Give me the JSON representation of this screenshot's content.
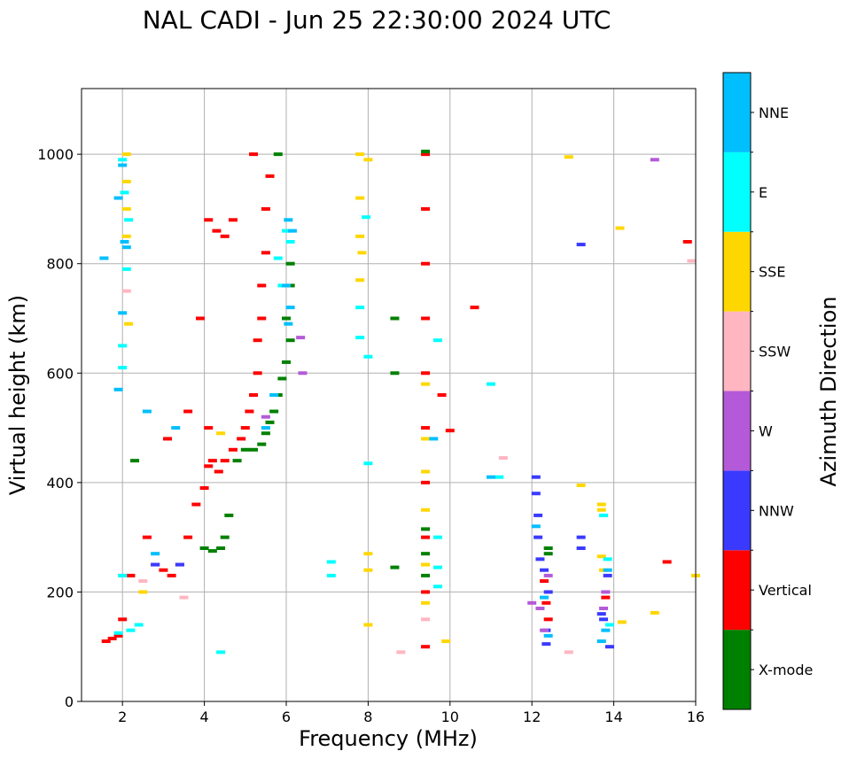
{
  "chart_data": {
    "type": "scatter",
    "title": "NAL CADI - Jun 25 22:30:00 2024 UTC",
    "xlabel": "Frequency (MHz)",
    "ylabel": "Virtual height (km)",
    "xlim": [
      1,
      16
    ],
    "ylim": [
      0,
      1120
    ],
    "xticks": [
      2,
      4,
      6,
      8,
      10,
      12,
      14,
      16
    ],
    "yticks": [
      0,
      200,
      400,
      600,
      800,
      1000
    ],
    "grid": true,
    "colorbar": {
      "label": "Azimuth Direction",
      "categories": [
        {
          "name": "X-mode",
          "color": "#008000"
        },
        {
          "name": "Vertical",
          "color": "#ff0000"
        },
        {
          "name": "NNW",
          "color": "#3a3aff"
        },
        {
          "name": "W",
          "color": "#b45ad8"
        },
        {
          "name": "SSW",
          "color": "#ffb6c1"
        },
        {
          "name": "SSE",
          "color": "#ffd700"
        },
        {
          "name": "E",
          "color": "#00ffff"
        },
        {
          "name": "NNE",
          "color": "#00bfff"
        }
      ]
    },
    "series": [
      {
        "name": "Vertical",
        "points": [
          [
            1.6,
            110
          ],
          [
            1.75,
            115
          ],
          [
            1.9,
            120
          ],
          [
            2.0,
            150
          ],
          [
            2.2,
            230
          ],
          [
            2.6,
            300
          ],
          [
            2.8,
            250
          ],
          [
            3.0,
            240
          ],
          [
            3.2,
            230
          ],
          [
            3.4,
            250
          ],
          [
            3.6,
            300
          ],
          [
            3.8,
            360
          ],
          [
            4.0,
            390
          ],
          [
            4.1,
            430
          ],
          [
            4.2,
            440
          ],
          [
            4.35,
            420
          ],
          [
            4.5,
            440
          ],
          [
            4.7,
            460
          ],
          [
            4.9,
            480
          ],
          [
            5.0,
            500
          ],
          [
            5.1,
            530
          ],
          [
            5.2,
            560
          ],
          [
            5.3,
            600
          ],
          [
            5.3,
            660
          ],
          [
            5.4,
            700
          ],
          [
            5.4,
            760
          ],
          [
            5.5,
            820
          ],
          [
            5.5,
            900
          ],
          [
            5.6,
            960
          ],
          [
            5.2,
            1000
          ],
          [
            4.1,
            880
          ],
          [
            4.3,
            860
          ],
          [
            4.5,
            850
          ],
          [
            4.7,
            880
          ],
          [
            3.9,
            700
          ],
          [
            3.1,
            480
          ],
          [
            3.6,
            530
          ],
          [
            4.1,
            500
          ],
          [
            9.4,
            1000
          ],
          [
            9.4,
            900
          ],
          [
            9.4,
            800
          ],
          [
            9.4,
            700
          ],
          [
            9.4,
            600
          ],
          [
            9.4,
            500
          ],
          [
            9.4,
            400
          ],
          [
            9.4,
            300
          ],
          [
            9.4,
            200
          ],
          [
            9.4,
            100
          ],
          [
            9.8,
            560
          ],
          [
            10.0,
            495
          ],
          [
            10.6,
            720
          ],
          [
            12.3,
            220
          ],
          [
            12.35,
            180
          ],
          [
            12.4,
            150
          ],
          [
            13.8,
            190
          ],
          [
            15.3,
            255
          ],
          [
            15.8,
            840
          ]
        ]
      },
      {
        "name": "X-mode",
        "points": [
          [
            2.3,
            440
          ],
          [
            4.0,
            280
          ],
          [
            4.2,
            275
          ],
          [
            4.4,
            280
          ],
          [
            4.5,
            300
          ],
          [
            4.6,
            340
          ],
          [
            4.8,
            440
          ],
          [
            5.0,
            460
          ],
          [
            5.2,
            460
          ],
          [
            5.4,
            470
          ],
          [
            5.5,
            490
          ],
          [
            5.6,
            510
          ],
          [
            5.7,
            530
          ],
          [
            5.8,
            560
          ],
          [
            5.9,
            590
          ],
          [
            6.0,
            620
          ],
          [
            6.1,
            660
          ],
          [
            6.0,
            700
          ],
          [
            6.1,
            760
          ],
          [
            6.1,
            800
          ],
          [
            5.8,
            1000
          ],
          [
            8.65,
            700
          ],
          [
            8.65,
            600
          ],
          [
            8.65,
            245
          ],
          [
            9.4,
            315
          ],
          [
            9.4,
            270
          ],
          [
            9.4,
            230
          ],
          [
            9.4,
            1005
          ],
          [
            12.4,
            270
          ],
          [
            12.4,
            280
          ]
        ]
      },
      {
        "name": "NNW",
        "points": [
          [
            12.1,
            410
          ],
          [
            12.1,
            380
          ],
          [
            12.15,
            340
          ],
          [
            12.15,
            300
          ],
          [
            12.2,
            260
          ],
          [
            12.3,
            240
          ],
          [
            12.4,
            200
          ],
          [
            12.35,
            130
          ],
          [
            12.35,
            105
          ],
          [
            13.2,
            300
          ],
          [
            13.2,
            280
          ],
          [
            13.2,
            835
          ],
          [
            13.7,
            160
          ],
          [
            13.75,
            150
          ],
          [
            13.85,
            230
          ],
          [
            13.9,
            100
          ],
          [
            2.8,
            250
          ],
          [
            3.4,
            250
          ]
        ]
      },
      {
        "name": "W",
        "points": [
          [
            6.4,
            600
          ],
          [
            6.35,
            665
          ],
          [
            5.5,
            520
          ],
          [
            12.0,
            180
          ],
          [
            12.2,
            170
          ],
          [
            12.4,
            230
          ],
          [
            12.3,
            130
          ],
          [
            15.0,
            990
          ],
          [
            13.75,
            170
          ],
          [
            13.8,
            200
          ]
        ]
      },
      {
        "name": "SSW",
        "points": [
          [
            2.1,
            750
          ],
          [
            2.5,
            220
          ],
          [
            3.5,
            190
          ],
          [
            8.8,
            90
          ],
          [
            9.4,
            150
          ],
          [
            11.3,
            445
          ],
          [
            12.9,
            90
          ],
          [
            15.9,
            805
          ],
          [
            2.0,
            230
          ]
        ]
      },
      {
        "name": "SSE",
        "points": [
          [
            2.1,
            1000
          ],
          [
            2.1,
            950
          ],
          [
            2.1,
            900
          ],
          [
            2.1,
            850
          ],
          [
            2.15,
            690
          ],
          [
            2.5,
            200
          ],
          [
            7.8,
            1000
          ],
          [
            7.8,
            920
          ],
          [
            7.8,
            850
          ],
          [
            7.85,
            820
          ],
          [
            7.8,
            770
          ],
          [
            8.0,
            990
          ],
          [
            8.0,
            270
          ],
          [
            8.0,
            240
          ],
          [
            8.0,
            140
          ],
          [
            9.4,
            580
          ],
          [
            9.4,
            480
          ],
          [
            9.4,
            420
          ],
          [
            9.4,
            350
          ],
          [
            9.4,
            250
          ],
          [
            9.4,
            180
          ],
          [
            9.9,
            110
          ],
          [
            12.9,
            995
          ],
          [
            13.2,
            395
          ],
          [
            13.7,
            360
          ],
          [
            13.7,
            350
          ],
          [
            13.7,
            265
          ],
          [
            13.75,
            240
          ],
          [
            13.7,
            110
          ],
          [
            14.15,
            865
          ],
          [
            14.2,
            145
          ],
          [
            15.0,
            162
          ],
          [
            16.0,
            230
          ],
          [
            4.4,
            490
          ]
        ]
      },
      {
        "name": "E",
        "points": [
          [
            2.0,
            990
          ],
          [
            2.05,
            930
          ],
          [
            2.15,
            880
          ],
          [
            2.1,
            790
          ],
          [
            2.0,
            650
          ],
          [
            2.0,
            610
          ],
          [
            2.0,
            230
          ],
          [
            1.9,
            125
          ],
          [
            2.2,
            130
          ],
          [
            2.4,
            140
          ],
          [
            7.8,
            720
          ],
          [
            7.8,
            665
          ],
          [
            7.95,
            885
          ],
          [
            8.0,
            630
          ],
          [
            8.0,
            435
          ],
          [
            9.7,
            210
          ],
          [
            9.7,
            245
          ],
          [
            9.7,
            660
          ],
          [
            9.7,
            300
          ],
          [
            11.2,
            410
          ],
          [
            11.0,
            580
          ],
          [
            13.75,
            340
          ],
          [
            13.85,
            260
          ],
          [
            13.9,
            140
          ],
          [
            7.1,
            255
          ],
          [
            7.1,
            230
          ],
          [
            4.4,
            90
          ],
          [
            6.1,
            840
          ],
          [
            6.0,
            860
          ],
          [
            5.9,
            760
          ],
          [
            5.8,
            810
          ]
        ]
      },
      {
        "name": "NNE",
        "points": [
          [
            2.0,
            980
          ],
          [
            2.05,
            840
          ],
          [
            2.1,
            830
          ],
          [
            1.9,
            920
          ],
          [
            1.55,
            810
          ],
          [
            1.9,
            570
          ],
          [
            2.0,
            710
          ],
          [
            2.6,
            530
          ],
          [
            6.05,
            880
          ],
          [
            6.15,
            860
          ],
          [
            6.0,
            760
          ],
          [
            6.1,
            720
          ],
          [
            6.05,
            690
          ],
          [
            5.7,
            560
          ],
          [
            5.5,
            500
          ],
          [
            9.6,
            480
          ],
          [
            11.0,
            410
          ],
          [
            12.1,
            320
          ],
          [
            12.3,
            190
          ],
          [
            12.4,
            120
          ],
          [
            13.7,
            110
          ],
          [
            13.8,
            130
          ],
          [
            13.85,
            240
          ],
          [
            3.3,
            500
          ],
          [
            2.8,
            270
          ]
        ]
      }
    ]
  }
}
